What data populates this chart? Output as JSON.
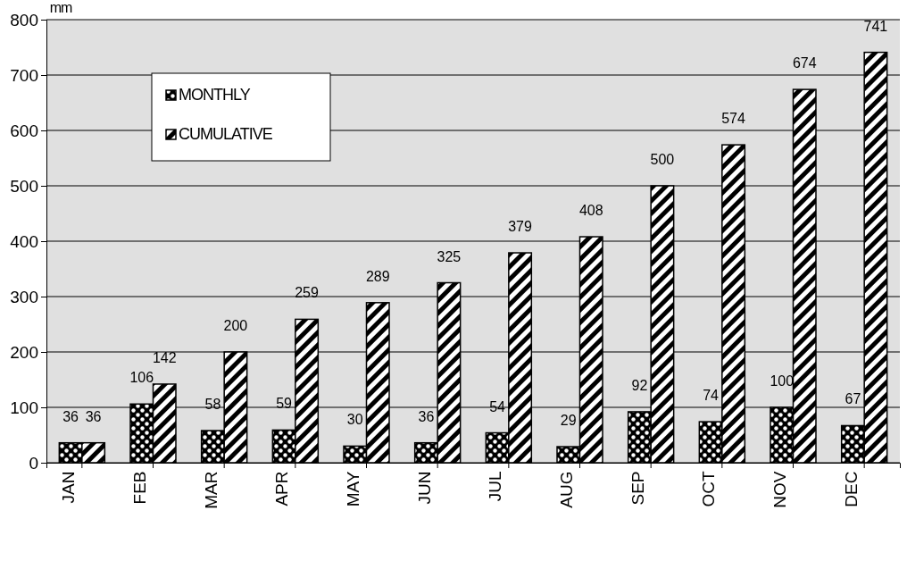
{
  "chart_data": {
    "type": "bar",
    "ylabel": "mm",
    "categories": [
      "JAN",
      "FEB",
      "MAR",
      "APR",
      "MAY",
      "JUN",
      "JUL",
      "AUG",
      "SEP",
      "OCT",
      "NOV",
      "DEC"
    ],
    "series": [
      {
        "name": "MONTHLY",
        "color": "#000000",
        "values": [
          36,
          106,
          58,
          59,
          30,
          36,
          54,
          29,
          92,
          74,
          100,
          67
        ]
      },
      {
        "name": "CUMULATIVE",
        "color": "#000000",
        "values": [
          36,
          142,
          200,
          259,
          289,
          325,
          379,
          408,
          500,
          574,
          674,
          741
        ]
      }
    ],
    "ylim": [
      0,
      800
    ],
    "yticks": [
      0,
      100,
      200,
      300,
      400,
      500,
      600,
      700,
      800
    ],
    "grid": "y",
    "legend": "top left",
    "data_labels": true
  }
}
